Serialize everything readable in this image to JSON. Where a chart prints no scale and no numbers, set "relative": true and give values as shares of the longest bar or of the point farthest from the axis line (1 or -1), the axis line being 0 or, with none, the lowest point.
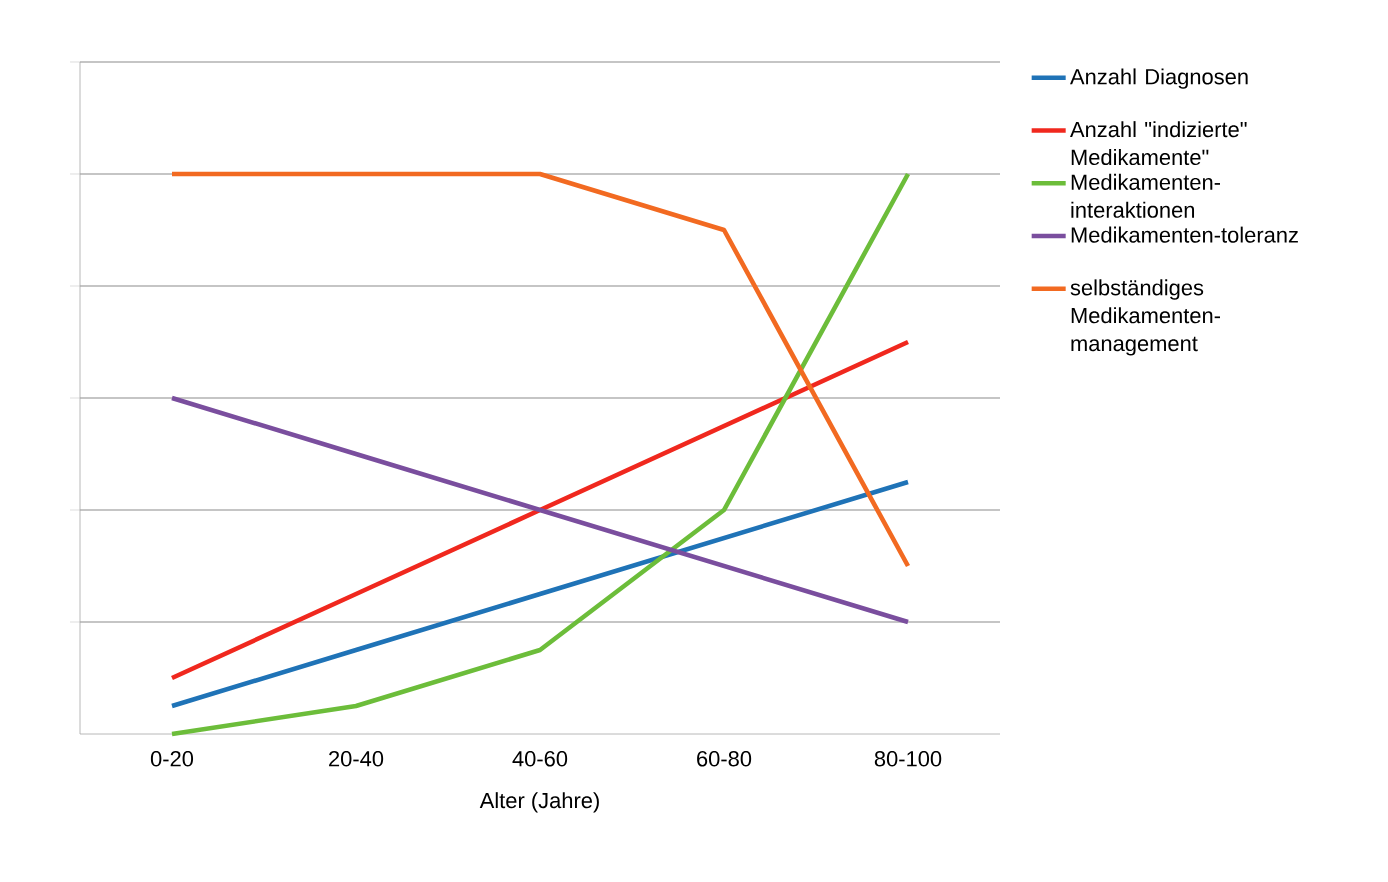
{
  "chart_data": {
    "type": "line",
    "xlabel": "Alter (Jahre)",
    "categories": [
      "0-20",
      "20-40",
      "40-60",
      "60-80",
      "80-100"
    ],
    "relative": true,
    "grid": "y",
    "legend": "right",
    "tick_labels": "x",
    "series": [
      {
        "name": "Anzahl Diagnosen",
        "color": "#1f73b7",
        "values": [
          0.05,
          0.15,
          0.25,
          0.35,
          0.45
        ]
      },
      {
        "name": "Anzahl \"indizierte\" Medikamente\"",
        "color": "#f0281e",
        "values": [
          0.1,
          0.25,
          0.4,
          0.55,
          0.7
        ]
      },
      {
        "name": "Medikamenten-interaktionen",
        "color": "#6cbd3a",
        "values": [
          0,
          0.05,
          0.15,
          0.4,
          1
        ]
      },
      {
        "name": "Medikamenten-toleranz",
        "color": "#7a4e9e",
        "values": [
          0.6,
          0.5,
          0.4,
          0.3,
          0.2
        ]
      },
      {
        "name": "selbständiges Medikamenten-management",
        "color": "#f26a21",
        "values": [
          1,
          1,
          1,
          0.9,
          0.3
        ]
      }
    ]
  }
}
